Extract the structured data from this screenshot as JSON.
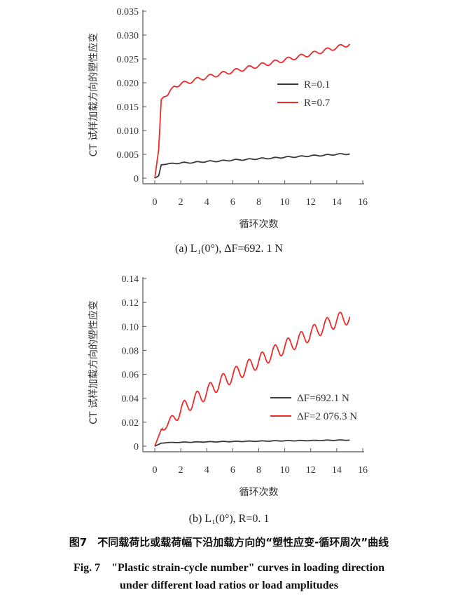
{
  "figure_caption_cn": "图7　不同载荷比或载荷幅下沿加载方向的“塑性应变-循环周次”曲线",
  "figure_caption_en_line1": "Fig. 7　\"Plastic strain-cycle number\" curves in loading direction",
  "figure_caption_en_line2": "under different load ratios or load amplitudes",
  "chart_data": [
    {
      "type": "line",
      "subcaption": "(a) L₁(0°), ΔF=692. 1 N",
      "xlabel": "循环次数",
      "ylabel": "CT 试样加载方向的塑性应变",
      "xlim": [
        0,
        16
      ],
      "ylim": [
        0,
        0.035
      ],
      "x_ticks": [
        "0",
        "2",
        "4",
        "6",
        "8",
        "10",
        "12",
        "14",
        "16"
      ],
      "y_ticks": [
        "0",
        "0.005",
        "0.010",
        "0.015",
        "0.020",
        "0.025",
        "0.030",
        "0.035"
      ],
      "legend_position": "right",
      "series": [
        {
          "name": "R=0.1",
          "color": "#3a3a3a",
          "x": [
            0,
            0.3,
            0.5,
            0.7,
            1.0,
            1.5,
            2,
            3,
            4,
            5,
            6,
            7,
            8,
            9,
            10,
            11,
            12,
            13,
            14,
            15
          ],
          "y": [
            0,
            0.0005,
            0.0028,
            0.0029,
            0.003,
            0.0031,
            0.0032,
            0.0033,
            0.0035,
            0.0036,
            0.0038,
            0.0039,
            0.0041,
            0.0042,
            0.0044,
            0.0045,
            0.0047,
            0.0048,
            0.005,
            0.0051
          ],
          "osc_amp": 0.00012
        },
        {
          "name": "R=0.7",
          "color": "#ee2a2a",
          "x": [
            0,
            0.3,
            0.5,
            0.7,
            1.0,
            1.2,
            1.5,
            2,
            3,
            4,
            5,
            6,
            7,
            8,
            9,
            10,
            11,
            12,
            13,
            14,
            15
          ],
          "y": [
            0,
            0.006,
            0.0165,
            0.0172,
            0.0174,
            0.0182,
            0.0193,
            0.0197,
            0.0205,
            0.0212,
            0.0218,
            0.0224,
            0.023,
            0.0236,
            0.0242,
            0.0248,
            0.0254,
            0.026,
            0.0267,
            0.0274,
            0.0281
          ],
          "osc_amp": 0.0004
        }
      ]
    },
    {
      "type": "line",
      "subcaption": "(b) L₁(0°), R=0. 1",
      "xlabel": "循环次数",
      "ylabel": "CT 试样加载方向的塑性应变",
      "xlim": [
        0,
        16
      ],
      "ylim": [
        0,
        0.14
      ],
      "x_ticks": [
        "0",
        "2",
        "4",
        "6",
        "8",
        "10",
        "12",
        "14",
        "16"
      ],
      "y_ticks": [
        "0",
        "0.02",
        "0.04",
        "0.06",
        "0.08",
        "0.10",
        "0.12",
        "0.14"
      ],
      "legend_position": "right",
      "series": [
        {
          "name": "ΔF=692.1 N",
          "color": "#3a3a3a",
          "x": [
            0,
            0.3,
            0.5,
            1,
            2,
            4,
            6,
            8,
            10,
            12,
            14,
            15
          ],
          "y": [
            0,
            0.0015,
            0.0025,
            0.003,
            0.0032,
            0.0036,
            0.0039,
            0.0042,
            0.0045,
            0.0047,
            0.005,
            0.0051
          ],
          "osc_amp": 0.0002
        },
        {
          "name": "ΔF=2 076.3 N",
          "color": "#ee2a2a",
          "x": [
            0,
            0.5,
            1,
            2,
            3,
            4,
            5,
            6,
            7,
            8,
            9,
            10,
            11,
            12,
            13,
            14,
            15
          ],
          "y": [
            0,
            0.014,
            0.018,
            0.03,
            0.038,
            0.045,
            0.053,
            0.059,
            0.065,
            0.071,
            0.077,
            0.083,
            0.088,
            0.094,
            0.1,
            0.105,
            0.108
          ],
          "osc_amp": 0.006
        }
      ]
    }
  ]
}
